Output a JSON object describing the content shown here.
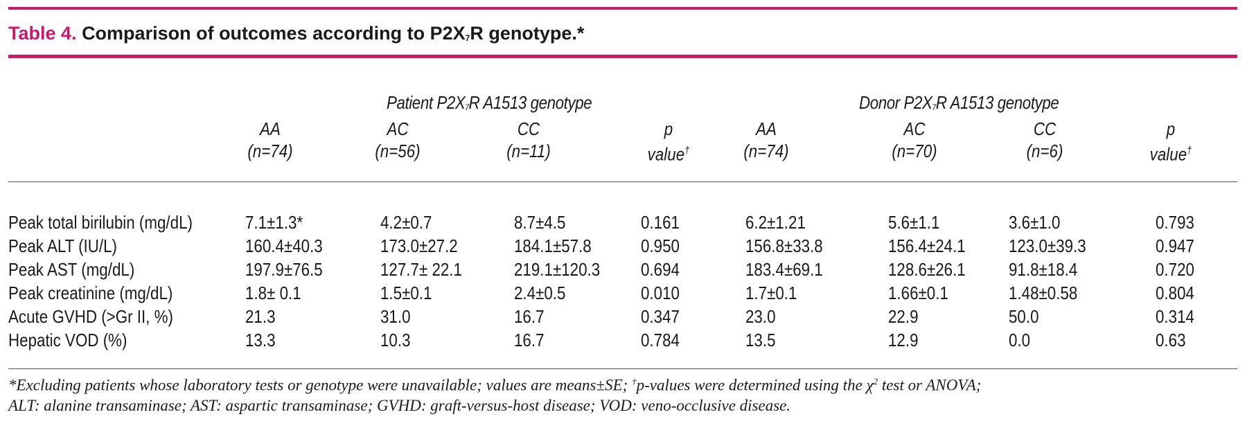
{
  "table": {
    "label": "Table 4.",
    "title_pre": "Comparison of outcomes according to P2X",
    "title_sub": "7",
    "title_post": "R genotype.*",
    "groups": [
      {
        "pre": "Patient P2X",
        "sub": "7",
        "post": "R A1513 genotype"
      },
      {
        "pre": "Donor P2X",
        "sub": "7",
        "post": "R A1513 genotype"
      }
    ],
    "columns": [
      {
        "l1": "AA",
        "l2": "(n=74)"
      },
      {
        "l1": "AC",
        "l2": "(n=56)"
      },
      {
        "l1": "CC",
        "l2": "(n=11)"
      },
      {
        "l1": "p",
        "l2": "value",
        "mark": "†"
      },
      {
        "l1": "AA",
        "l2": "(n=74)"
      },
      {
        "l1": "AC",
        "l2": "(n=70)"
      },
      {
        "l1": "CC",
        "l2": "(n=6)"
      },
      {
        "l1": "p",
        "l2": "value",
        "mark": "†"
      }
    ],
    "rows": [
      {
        "label": "Peak total birilubin (mg/dL)",
        "cells": [
          "7.1±1.3*",
          "4.2±0.7",
          "8.7±4.5",
          "0.161",
          "6.2±1.21",
          "5.6±1.1",
          "3.6±1.0",
          "0.793"
        ]
      },
      {
        "label": "Peak ALT (IU/L)",
        "cells": [
          "160.4±40.3",
          "173.0±27.2",
          "184.1±57.8",
          "0.950",
          "156.8±33.8",
          "156.4±24.1",
          "123.0±39.3",
          "0.947"
        ]
      },
      {
        "label": "Peak AST (mg/dL)",
        "cells": [
          "197.9±76.5",
          "127.7± 22.1",
          "219.1±120.3",
          "0.694",
          "183.4±69.1",
          "128.6±26.1",
          "91.8±18.4",
          "0.720"
        ]
      },
      {
        "label": "Peak creatinine (mg/dL)",
        "cells": [
          "1.8± 0.1",
          "1.5±0.1",
          "2.4±0.5",
          "0.010",
          "1.7±0.1",
          "1.66±0.1",
          "1.48±0.58",
          "0.804"
        ]
      },
      {
        "label": "Acute GVHD (>Gr II, %)",
        "cells": [
          "21.3",
          "31.0",
          "16.7",
          "0.347",
          "23.0",
          "22.9",
          "50.0",
          "0.314"
        ]
      },
      {
        "label": "Hepatic VOD (%)",
        "cells": [
          "13.3",
          "10.3",
          "16.7",
          "0.784",
          "13.5",
          "12.9",
          "0.0",
          "0.63"
        ]
      }
    ],
    "footnote_line1_a": "*Excluding patients whose laboratory tests or genotype were unavailable; values are means±SE; ",
    "footnote_dagger": "†",
    "footnote_line1_b": "p-values were determined using the χ",
    "footnote_sq": "2",
    "footnote_line1_c": " test or ANOVA;",
    "footnote_line2": "ALT: alanine transaminase; AST: aspartic transaminase; GVHD: graft-versus-host disease; VOD: veno-occlusive disease."
  },
  "colors": {
    "accent": "#c8186e",
    "text": "#1a1a1a"
  }
}
